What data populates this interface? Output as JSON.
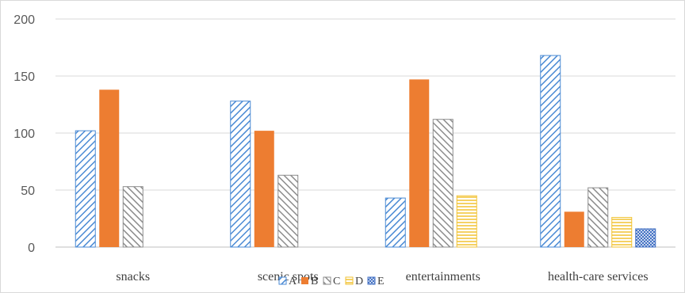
{
  "chart_data": {
    "type": "bar",
    "categories": [
      "snacks",
      "scenic spots",
      "entertainments",
      "health-care services"
    ],
    "series": [
      {
        "name": "A",
        "values": [
          102,
          128,
          43,
          168
        ],
        "color": "#4a8ad4",
        "pattern": "diagonal-back"
      },
      {
        "name": "B",
        "values": [
          138,
          102,
          147,
          31
        ],
        "color": "#ed7d31",
        "pattern": "solid"
      },
      {
        "name": "C",
        "values": [
          53,
          63,
          112,
          52
        ],
        "color": "#8c8c8c",
        "pattern": "diagonal-forward"
      },
      {
        "name": "D",
        "values": [
          null,
          null,
          45,
          26
        ],
        "color": "#f2c230",
        "pattern": "horizontal"
      },
      {
        "name": "E",
        "values": [
          null,
          null,
          null,
          16
        ],
        "color": "#4472c4",
        "pattern": "checker"
      }
    ],
    "y_ticks": [
      0,
      50,
      100,
      150,
      200
    ],
    "ylim": [
      0,
      200
    ],
    "grid": true,
    "legend_position": "bottom"
  }
}
